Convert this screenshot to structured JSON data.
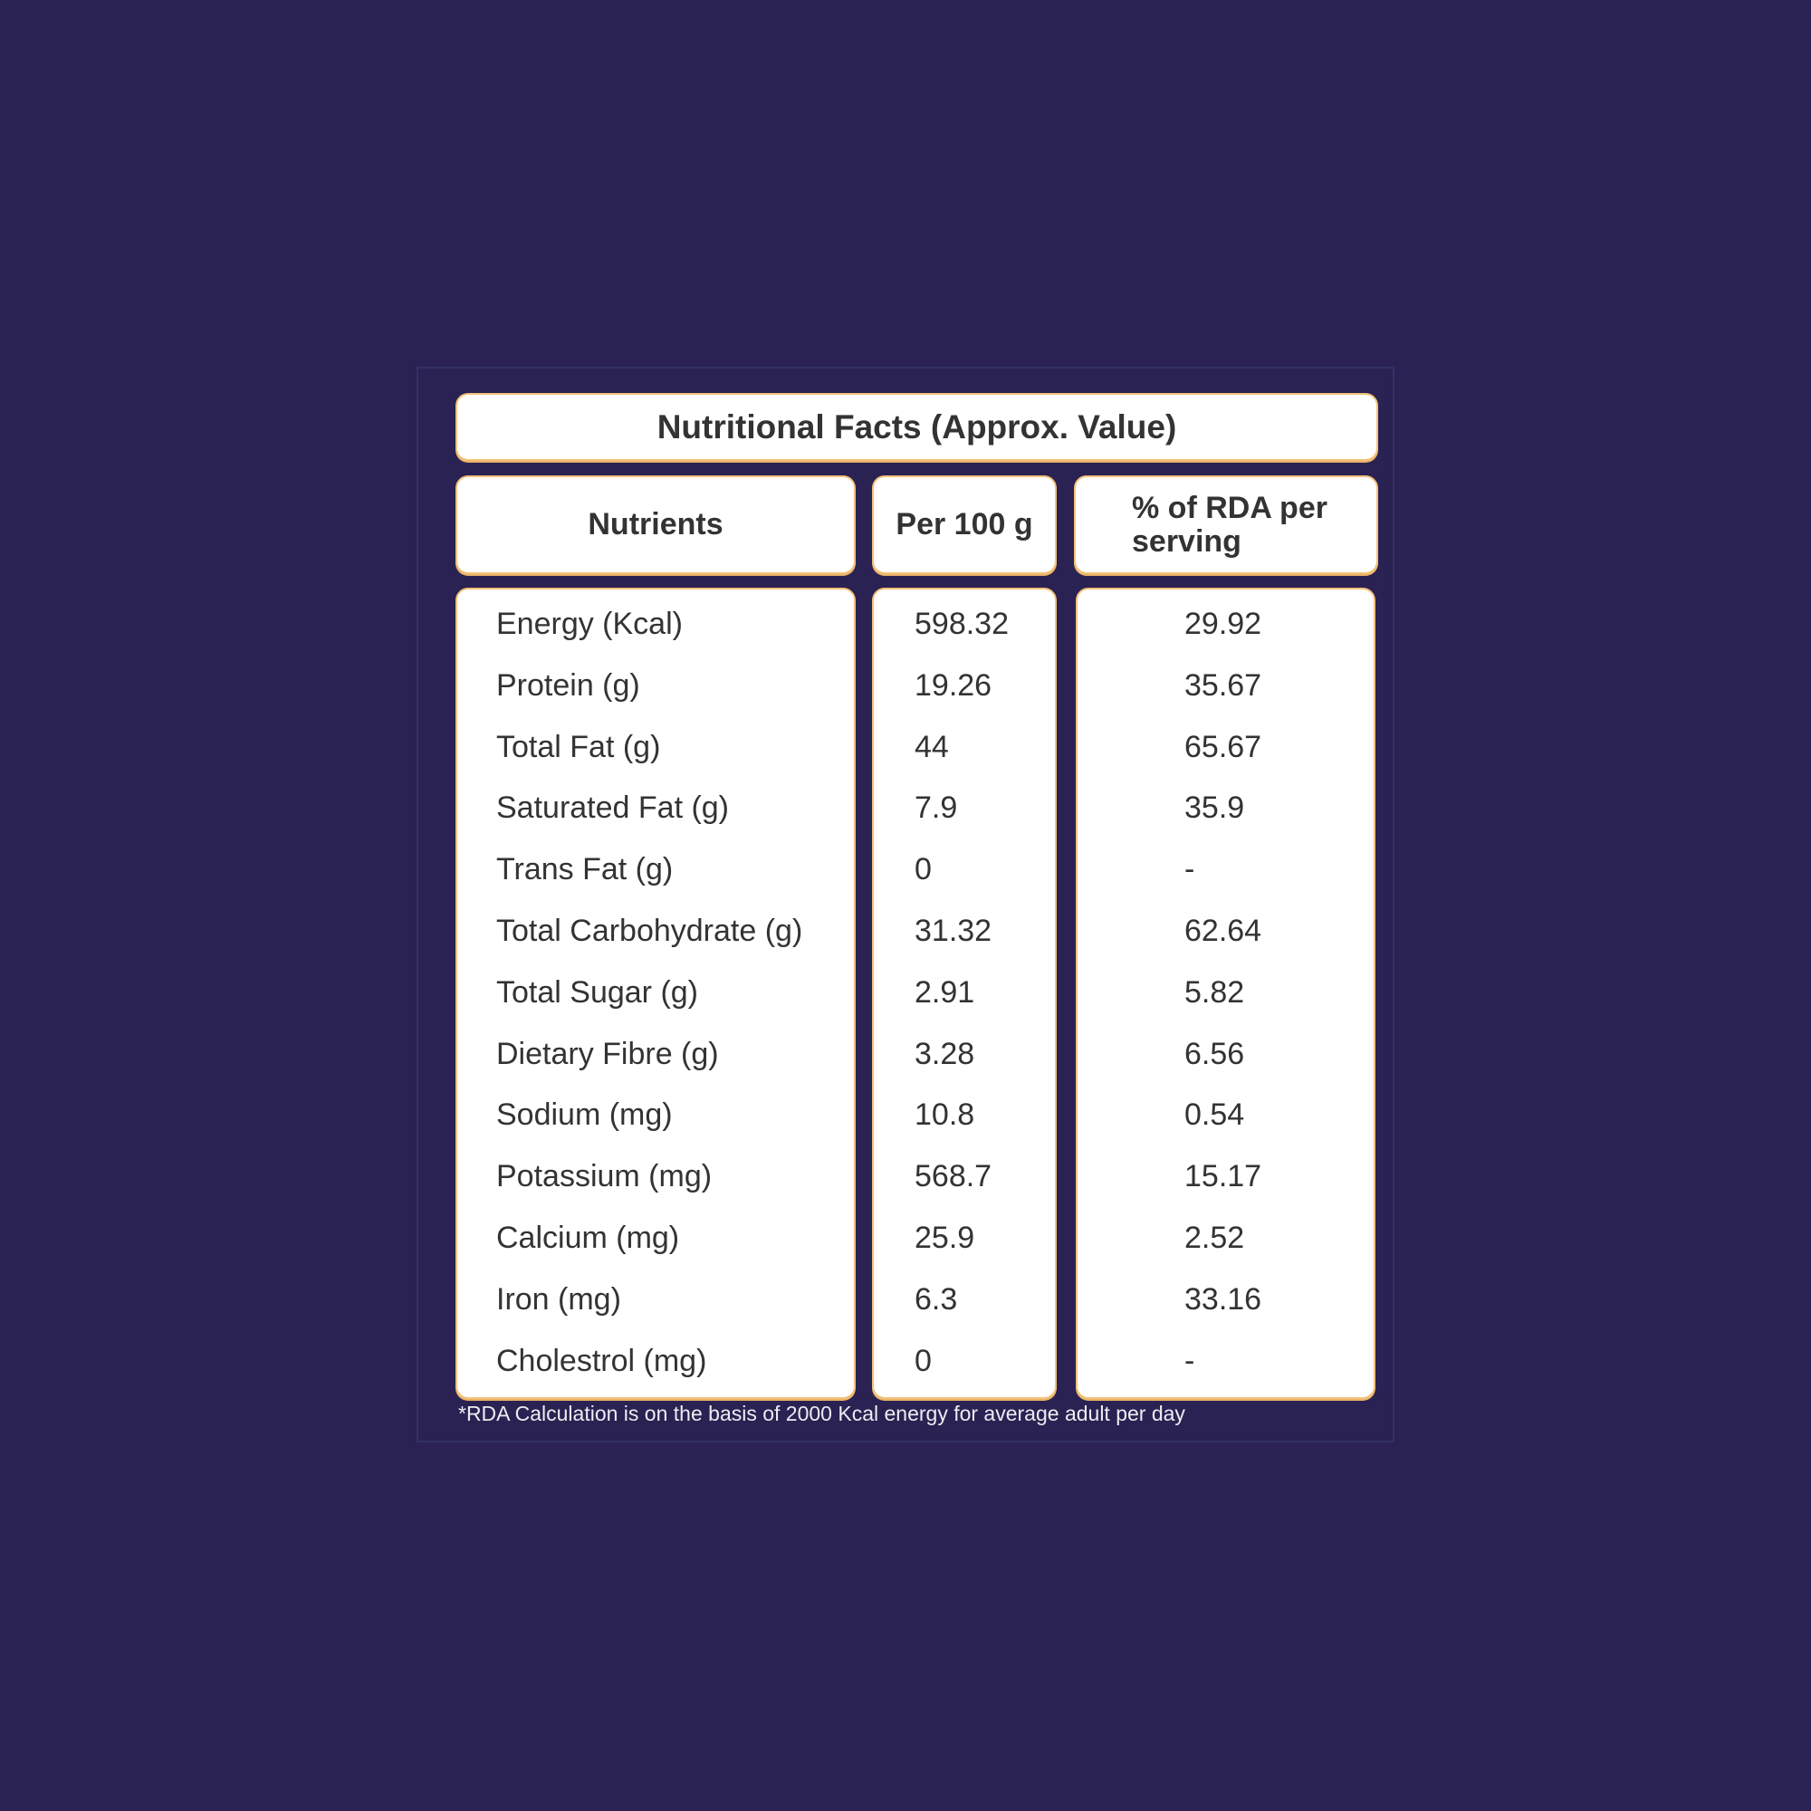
{
  "title": "Nutritional Facts (Approx. Value)",
  "headers": {
    "nutrients": "Nutrients",
    "per100": "Per 100 g",
    "rda": "% of RDA per serving"
  },
  "rows": [
    {
      "nutrient": "Energy (Kcal)",
      "per100": "598.32",
      "rda": "29.92"
    },
    {
      "nutrient": "Protein (g)",
      "per100": "19.26",
      "rda": "35.67"
    },
    {
      "nutrient": "Total Fat (g)",
      "per100": "44",
      "rda": "65.67"
    },
    {
      "nutrient": "Saturated Fat (g)",
      "per100": "7.9",
      "rda": "35.9"
    },
    {
      "nutrient": "Trans Fat (g)",
      "per100": "0",
      "rda": "-"
    },
    {
      "nutrient": "Total Carbohydrate (g)",
      "per100": "31.32",
      "rda": "62.64"
    },
    {
      "nutrient": "Total Sugar (g)",
      "per100": "2.91",
      "rda": "5.82"
    },
    {
      "nutrient": "Dietary Fibre (g)",
      "per100": "3.28",
      "rda": "6.56"
    },
    {
      "nutrient": "Sodium (mg)",
      "per100": "10.8",
      "rda": "0.54"
    },
    {
      "nutrient": "Potassium (mg)",
      "per100": "568.7",
      "rda": "15.17"
    },
    {
      "nutrient": "Calcium (mg)",
      "per100": "25.9",
      "rda": "2.52"
    },
    {
      "nutrient": "Iron (mg)",
      "per100": "6.3",
      "rda": "33.16"
    },
    {
      "nutrient": "Cholestrol (mg)",
      "per100": "0",
      "rda": "-"
    }
  ],
  "footnote": "*RDA Calculation is on the basis of 2000 Kcal energy for average adult per day",
  "colors": {
    "background": "#2a2252",
    "box_border": "#f3c27a",
    "text": "#333333"
  }
}
